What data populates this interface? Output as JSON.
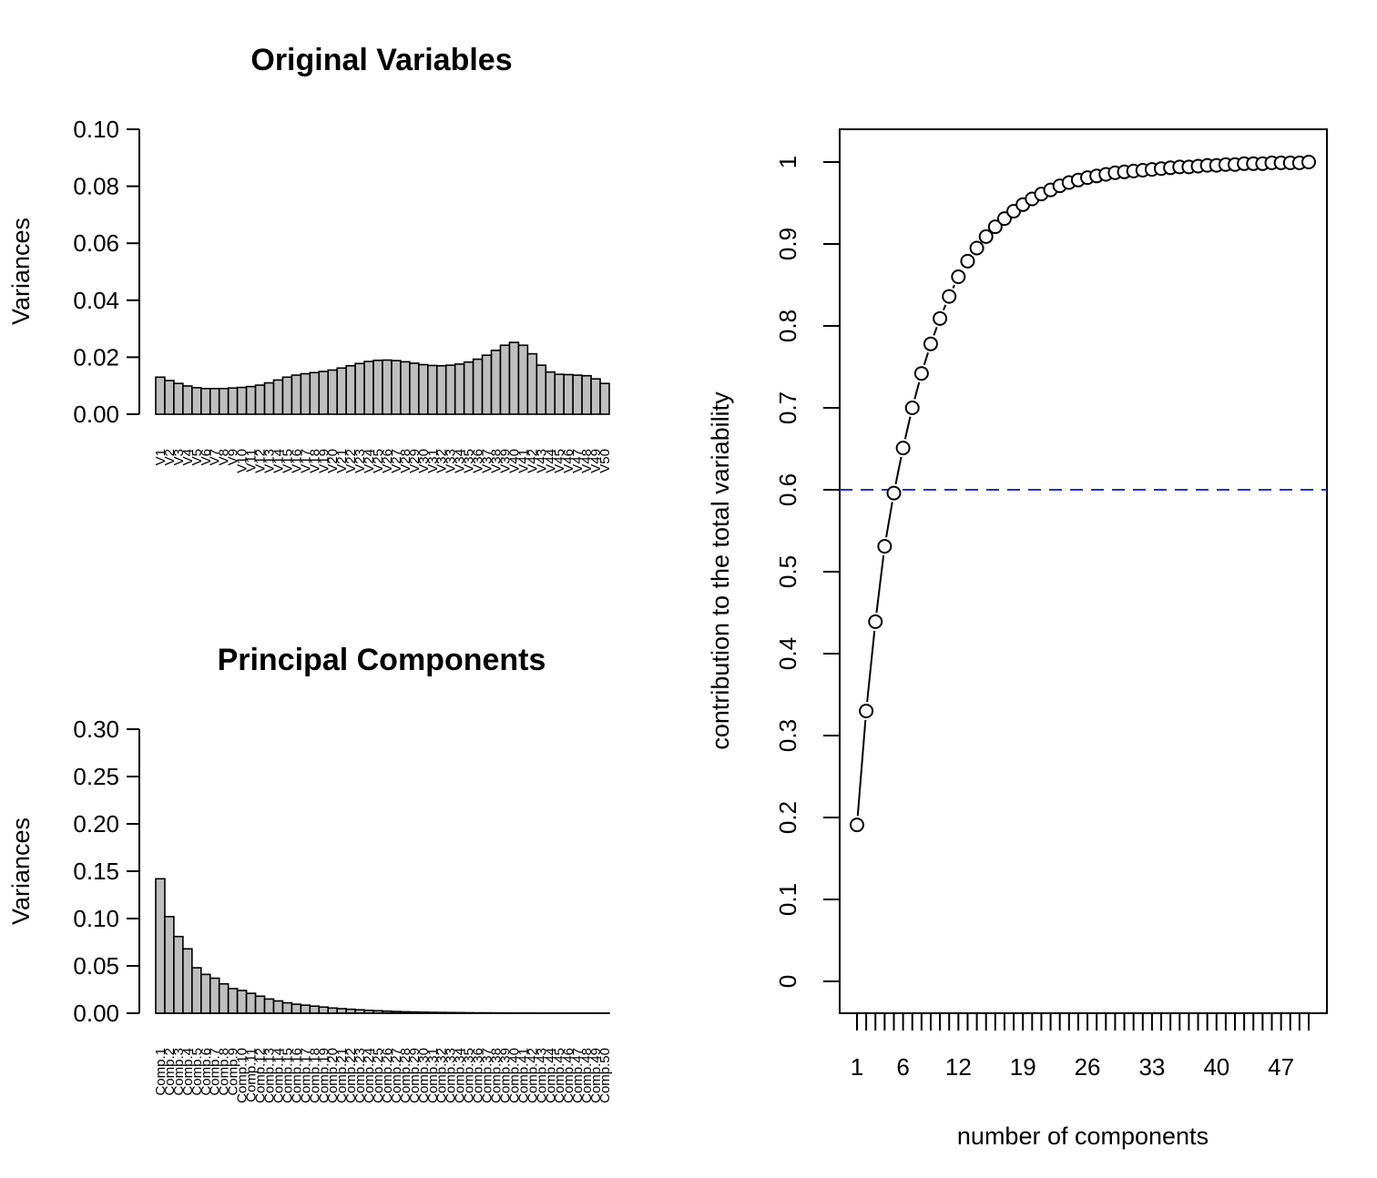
{
  "chart_data": [
    {
      "type": "bar",
      "title": "Original Variables",
      "ylabel": "Variances",
      "ylim": [
        0,
        0.1
      ],
      "yticks": [
        "0.00",
        "0.02",
        "0.04",
        "0.06",
        "0.08",
        "0.10"
      ],
      "categories": [
        "V1",
        "V2",
        "V3",
        "V4",
        "V5",
        "V6",
        "V7",
        "V8",
        "V9",
        "V10",
        "V11",
        "V12",
        "V13",
        "V14",
        "V15",
        "V16",
        "V17",
        "V18",
        "V19",
        "V20",
        "V21",
        "V22",
        "V23",
        "V24",
        "V25",
        "V26",
        "V27",
        "V28",
        "V29",
        "V30",
        "V31",
        "V32",
        "V33",
        "V34",
        "V35",
        "V36",
        "V37",
        "V38",
        "V39",
        "V40",
        "V41",
        "V42",
        "V43",
        "V44",
        "V45",
        "V46",
        "V47",
        "V48",
        "V49",
        "V50"
      ],
      "values": [
        0.013,
        0.0118,
        0.0108,
        0.0099,
        0.0093,
        0.009,
        0.009,
        0.009,
        0.0092,
        0.0094,
        0.0097,
        0.0102,
        0.011,
        0.012,
        0.013,
        0.0137,
        0.0142,
        0.0146,
        0.015,
        0.0155,
        0.0162,
        0.017,
        0.0178,
        0.0185,
        0.0189,
        0.019,
        0.0188,
        0.0184,
        0.0179,
        0.0174,
        0.0171,
        0.017,
        0.0172,
        0.0176,
        0.0183,
        0.0193,
        0.0207,
        0.0224,
        0.0242,
        0.0252,
        0.0242,
        0.0212,
        0.0172,
        0.0148,
        0.014,
        0.0139,
        0.0137,
        0.0135,
        0.0124,
        0.0108
      ],
      "grid": false
    },
    {
      "type": "bar",
      "title": "Principal Components",
      "ylabel": "Variances",
      "ylim": [
        0,
        0.3
      ],
      "yticks": [
        "0.00",
        "0.05",
        "0.10",
        "0.15",
        "0.20",
        "0.25",
        "0.30"
      ],
      "categories": [
        "Comp.1",
        "Comp.2",
        "Comp.3",
        "Comp.4",
        "Comp.5",
        "Comp.6",
        "Comp.7",
        "Comp.8",
        "Comp.9",
        "Comp.10",
        "Comp.11",
        "Comp.12",
        "Comp.13",
        "Comp.14",
        "Comp.15",
        "Comp.16",
        "Comp.17",
        "Comp.18",
        "Comp.19",
        "Comp.20",
        "Comp.21",
        "Comp.22",
        "Comp.23",
        "Comp.24",
        "Comp.25",
        "Comp.26",
        "Comp.27",
        "Comp.28",
        "Comp.29",
        "Comp.30",
        "Comp.31",
        "Comp.32",
        "Comp.33",
        "Comp.34",
        "Comp.35",
        "Comp.36",
        "Comp.37",
        "Comp.38",
        "Comp.39",
        "Comp.40",
        "Comp.41",
        "Comp.42",
        "Comp.43",
        "Comp.44",
        "Comp.45",
        "Comp.46",
        "Comp.47",
        "Comp.48",
        "Comp.49",
        "Comp.50"
      ],
      "values": [
        0.142,
        0.102,
        0.081,
        0.068,
        0.048,
        0.041,
        0.037,
        0.031,
        0.026,
        0.024,
        0.021,
        0.018,
        0.015,
        0.013,
        0.011,
        0.0095,
        0.0085,
        0.0075,
        0.0065,
        0.0055,
        0.0048,
        0.0042,
        0.0036,
        0.003,
        0.0026,
        0.0022,
        0.0018,
        0.0015,
        0.0013,
        0.0011,
        0.0009,
        0.0008,
        0.0007,
        0.0006,
        0.0005,
        0.0004,
        0.0004,
        0.0003,
        0.0003,
        0.0002,
        0.0002,
        0.0002,
        0.0001,
        0.0001,
        0.0001,
        0.0001,
        0.0001,
        0.0001,
        0.0001,
        0.0001
      ],
      "grid": false
    },
    {
      "type": "line",
      "xlabel": "number of components",
      "ylabel": "contribution to the total variability",
      "xlim": [
        1,
        50
      ],
      "ylim": [
        0,
        1
      ],
      "xticklabels": [
        "1",
        "6",
        "12",
        "19",
        "26",
        "33",
        "40",
        "47"
      ],
      "yticklabels": [
        "0",
        "0.1",
        "0.2",
        "0.3",
        "0.4",
        "0.5",
        "0.6",
        "0.7",
        "0.8",
        "0.9",
        "1"
      ],
      "x": [
        1,
        2,
        3,
        4,
        5,
        6,
        7,
        8,
        9,
        10,
        11,
        12,
        13,
        14,
        15,
        16,
        17,
        18,
        19,
        20,
        21,
        22,
        23,
        24,
        25,
        26,
        27,
        28,
        29,
        30,
        31,
        32,
        33,
        34,
        35,
        36,
        37,
        38,
        39,
        40,
        41,
        42,
        43,
        44,
        45,
        46,
        47,
        48,
        49,
        50
      ],
      "y": [
        0.191,
        0.33,
        0.439,
        0.531,
        0.596,
        0.651,
        0.7,
        0.742,
        0.778,
        0.809,
        0.836,
        0.86,
        0.879,
        0.895,
        0.909,
        0.921,
        0.931,
        0.94,
        0.948,
        0.955,
        0.961,
        0.966,
        0.971,
        0.975,
        0.978,
        0.981,
        0.983,
        0.985,
        0.987,
        0.988,
        0.989,
        0.99,
        0.991,
        0.992,
        0.993,
        0.994,
        0.994,
        0.995,
        0.996,
        0.996,
        0.997,
        0.997,
        0.998,
        0.998,
        0.998,
        0.999,
        0.999,
        0.999,
        0.999,
        1.0
      ],
      "reference_line": {
        "y": 0.6,
        "color": "#1f2ddc",
        "style": "dashed"
      },
      "grid": false
    }
  ]
}
